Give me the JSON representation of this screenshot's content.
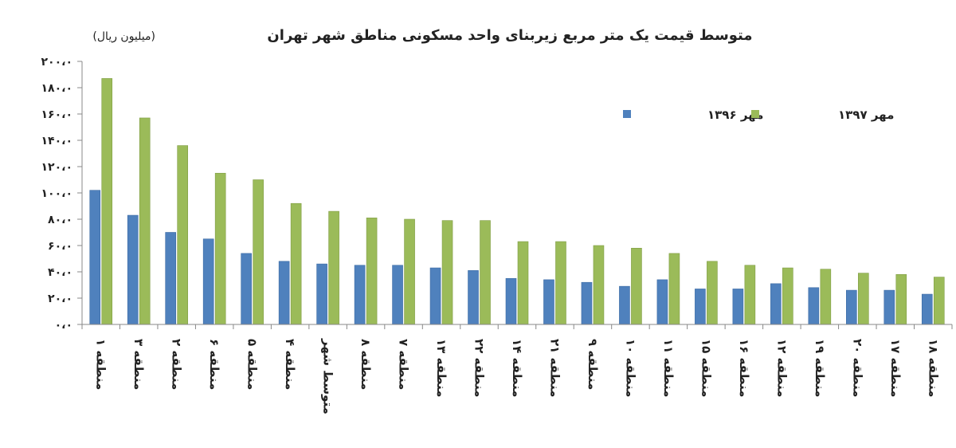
{
  "chart_data": {
    "type": "bar",
    "title": "متوسط قیمت یک متر مربع زیربنای واحد مسکونی مناطق شهر تهران",
    "ylabel": "(میلیون ریال)",
    "xlabel": "",
    "ylim": [
      0,
      200
    ],
    "yticks": [
      0,
      20,
      40,
      60,
      80,
      100,
      120,
      140,
      160,
      180,
      200
    ],
    "ytick_labels": [
      "۰،۰",
      "۲۰،۰",
      "۴۰،۰",
      "۶۰،۰",
      "۸۰،۰",
      "۱۰۰،۰",
      "۱۲۰،۰",
      "۱۴۰،۰",
      "۱۶۰،۰",
      "۱۸۰،۰",
      "۲۰۰،۰"
    ],
    "grid": false,
    "legend_position": "top-right",
    "categories": [
      "منطقه ۱",
      "منطقه ۳",
      "منطقه ۲",
      "منطقه ۶",
      "منطقه ۵",
      "منطقه ۴",
      "متوسط شهر",
      "منطقه ۸",
      "منطقه ۷",
      "منطقه ۱۳",
      "منطقه ۲۲",
      "منطقه ۱۴",
      "منطقه ۲۱",
      "منطقه ۹",
      "منطقه ۱۰",
      "منطقه ۱۱",
      "منطقه ۱۵",
      "منطقه ۱۶",
      "منطقه ۱۲",
      "منطقه ۱۹",
      "منطقه ۲۰",
      "منطقه ۱۷",
      "منطقه ۱۸"
    ],
    "series": [
      {
        "name": "مهر ۱۳۹۶",
        "color": "#4f81bd",
        "values": [
          102,
          83,
          70,
          65,
          54,
          48,
          46,
          45,
          45,
          43,
          41,
          35,
          34,
          32,
          29,
          34,
          27,
          27,
          31,
          28,
          26,
          26,
          23
        ]
      },
      {
        "name": "مهر ۱۳۹۷",
        "color": "#9bbb59",
        "values": [
          187,
          157,
          136,
          115,
          110,
          92,
          86,
          81,
          80,
          79,
          79,
          63,
          63,
          60,
          58,
          54,
          48,
          45,
          43,
          42,
          39,
          38,
          36
        ]
      }
    ]
  }
}
